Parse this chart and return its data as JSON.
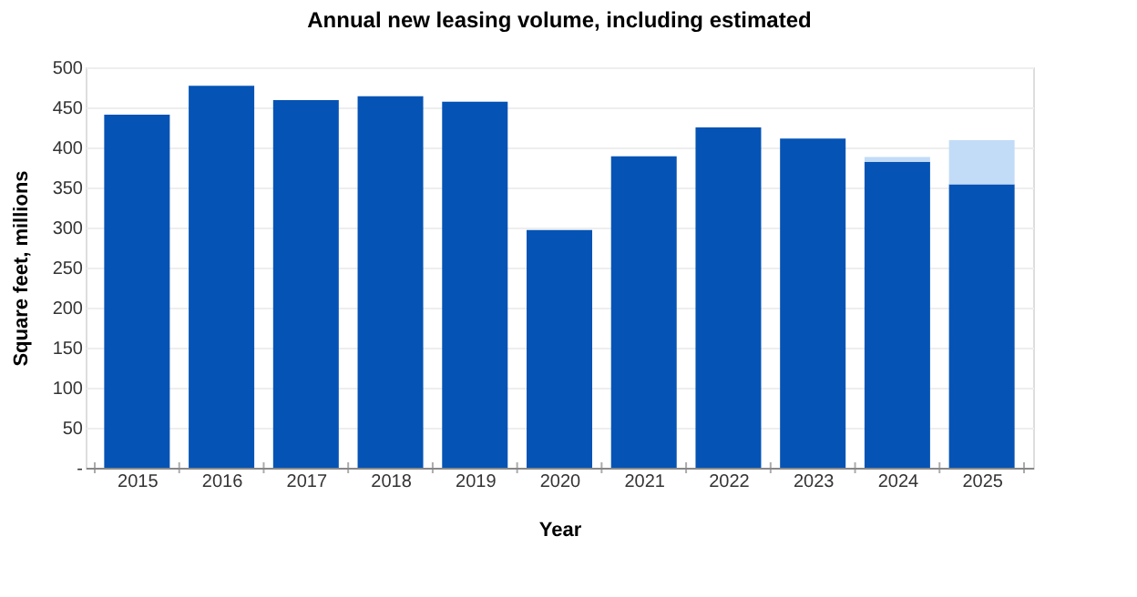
{
  "chart_data": {
    "type": "bar",
    "title": "Annual new leasing volume, including estimated",
    "xlabel": "Year",
    "ylabel": "Square feet, millions",
    "categories": [
      "2015",
      "2016",
      "2017",
      "2018",
      "2019",
      "2020",
      "2021",
      "2022",
      "2023",
      "2024",
      "2025"
    ],
    "stacked": true,
    "series": [
      {
        "color": "#0553b5",
        "values": [
          441,
          477,
          459,
          464,
          457,
          297,
          389,
          425,
          411,
          382,
          354
        ]
      },
      {
        "color": "#c2dcf7",
        "values": [
          null,
          null,
          null,
          null,
          null,
          null,
          null,
          null,
          null,
          6,
          55
        ]
      }
    ],
    "ylim": [
      0,
      500
    ],
    "yticks": [
      {
        "value": 0,
        "label": "-"
      },
      50,
      100,
      150,
      200,
      250,
      300,
      350,
      400,
      450,
      500
    ],
    "grid": "y"
  }
}
